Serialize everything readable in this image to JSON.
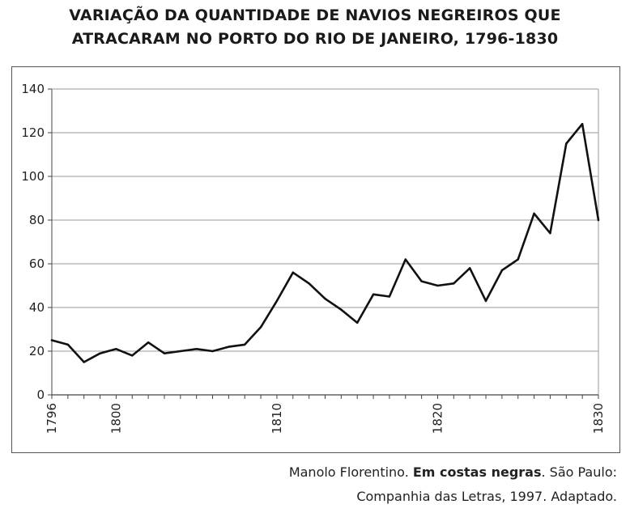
{
  "title_line1": "VARIAÇÃO DA QUANTIDADE DE NAVIOS NEGREIROS QUE",
  "title_line2": "ATRACARAM NO PORTO DO RIO DE JANEIRO, 1796-1830",
  "source": {
    "part1": "Manolo Florentino. ",
    "bold": "Em costas negras",
    "part2": ". São Paulo:",
    "line2": "Companhia das Letras, 1997. Adaptado."
  },
  "chart_data": {
    "type": "line",
    "title": "VARIAÇÃO DA QUANTIDADE DE NAVIOS NEGREIROS QUE ATRACARAM NO PORTO DO RIO DE JANEIRO, 1796-1830",
    "xlabel": "",
    "ylabel": "",
    "xlim": [
      1796,
      1830
    ],
    "ylim": [
      0,
      140
    ],
    "yticks": [
      0,
      20,
      40,
      60,
      80,
      100,
      120,
      140
    ],
    "xticks": [
      1796,
      1800,
      1810,
      1820,
      1830
    ],
    "grid": true,
    "line_color": "#111111",
    "x": [
      1796,
      1797,
      1798,
      1799,
      1800,
      1801,
      1802,
      1803,
      1804,
      1805,
      1806,
      1807,
      1808,
      1809,
      1810,
      1811,
      1812,
      1813,
      1814,
      1815,
      1816,
      1817,
      1818,
      1819,
      1820,
      1821,
      1822,
      1823,
      1824,
      1825,
      1826,
      1827,
      1828,
      1829,
      1830
    ],
    "values": [
      25,
      23,
      15,
      19,
      21,
      18,
      24,
      19,
      20,
      21,
      20,
      22,
      23,
      31,
      43,
      56,
      51,
      44,
      39,
      33,
      46,
      45,
      62,
      52,
      50,
      51,
      58,
      43,
      57,
      62,
      83,
      74,
      115,
      124,
      80
    ]
  }
}
